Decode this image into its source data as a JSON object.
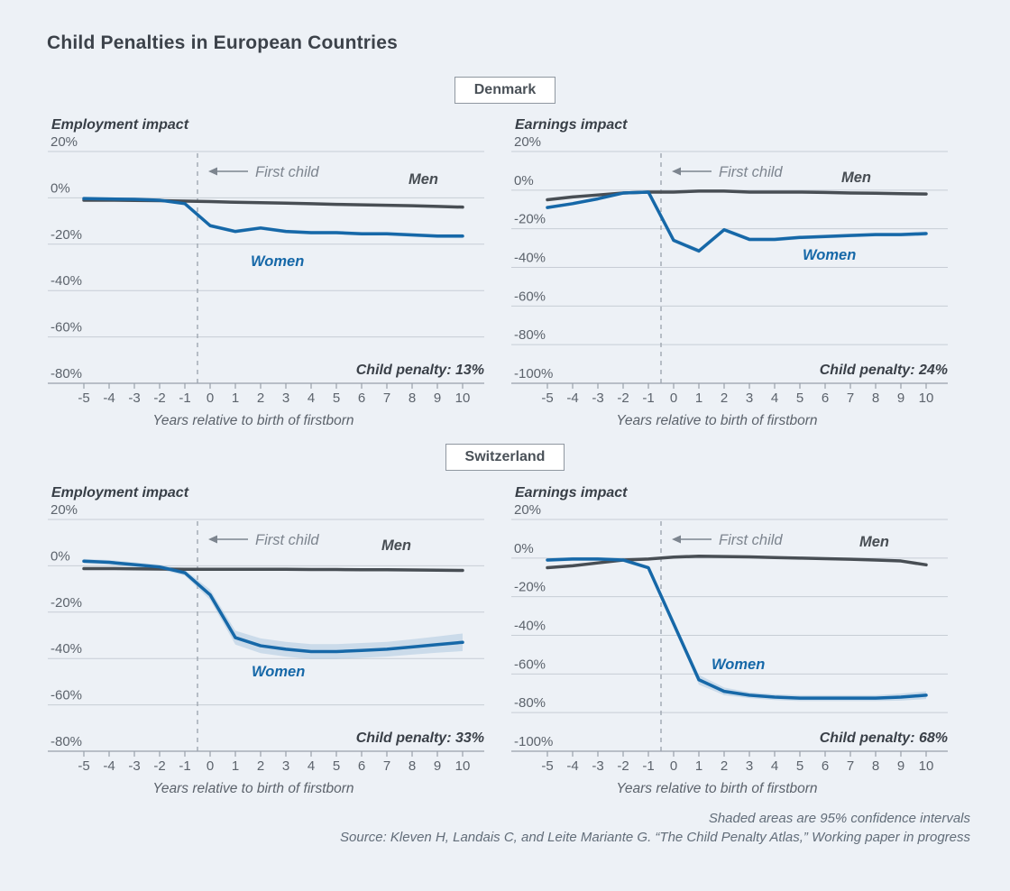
{
  "title": "Child Penalties in European Countries",
  "footer": {
    "note": "Shaded areas are 95% confidence intervals",
    "source": "Source: Kleven H, Landais C, and Leite Mariante G. “The Child Penalty Atlas,” Working paper in progress"
  },
  "colors": {
    "background": "#edf1f6",
    "title": "#3c424a",
    "heading": "#383f47",
    "men": "#484e54",
    "women": "#1668a8",
    "ci": "#a9c6de",
    "grid": "#c7cdd5",
    "axis": "#99a1ab",
    "tick_label": "#5c636c",
    "annotation": "#7d858f",
    "child_penalty": "#3a4048",
    "box_border": "#8f97a0",
    "footer": "#626d79"
  },
  "chart_data": [
    {
      "type": "line",
      "country": "Denmark",
      "title": "Employment impact",
      "xlabel": "Years relative to birth of firstborn",
      "x": [
        -5,
        -4,
        -3,
        -2,
        -1,
        0,
        1,
        2,
        3,
        4,
        5,
        6,
        7,
        8,
        9,
        10
      ],
      "yticks": [
        20,
        0,
        -20,
        -40,
        -60,
        -80
      ],
      "ylim": [
        -80,
        20
      ],
      "grid": true,
      "event_line_x": -0.5,
      "annotation": "First child",
      "child_penalty_pct": 13,
      "child_penalty_label": "Child penalty: 13%",
      "series": [
        {
          "name": "Men",
          "color_key": "men",
          "values": [
            -1.0,
            -1.0,
            -1.1,
            -1.2,
            -1.4,
            -1.6,
            -1.9,
            -2.1,
            -2.3,
            -2.5,
            -2.8,
            -3.0,
            -3.2,
            -3.4,
            -3.7,
            -4.0
          ]
        },
        {
          "name": "Women",
          "color_key": "women",
          "values": [
            -0.3,
            -0.5,
            -0.6,
            -1.0,
            -2.5,
            -12.0,
            -14.5,
            -13.0,
            -14.5,
            -15.0,
            -15.0,
            -15.5,
            -15.5,
            -16.0,
            -16.5,
            -16.5
          ],
          "ci_half_width": [
            0.5,
            0.5,
            0.5,
            0.5,
            0.6,
            0.8,
            0.8,
            0.8,
            0.8,
            0.8,
            0.8,
            0.8,
            0.8,
            0.8,
            0.8,
            0.9
          ]
        }
      ]
    },
    {
      "type": "line",
      "country": "Denmark",
      "title": "Earnings impact",
      "xlabel": "Years relative to birth of firstborn",
      "x": [
        -5,
        -4,
        -3,
        -2,
        -1,
        0,
        1,
        2,
        3,
        4,
        5,
        6,
        7,
        8,
        9,
        10
      ],
      "yticks": [
        20,
        0,
        -20,
        -40,
        -60,
        -80,
        -100
      ],
      "ylim": [
        -100,
        20
      ],
      "grid": true,
      "event_line_x": -0.5,
      "annotation": "First child",
      "child_penalty_pct": 24,
      "child_penalty_label": "Child penalty: 24%",
      "series": [
        {
          "name": "Men",
          "color_key": "men",
          "values": [
            -5.0,
            -3.5,
            -2.5,
            -1.5,
            -1.0,
            -1.0,
            -0.5,
            -0.5,
            -1.0,
            -1.0,
            -1.0,
            -1.2,
            -1.5,
            -1.6,
            -1.8,
            -2.0
          ]
        },
        {
          "name": "Women",
          "color_key": "women",
          "values": [
            -9.0,
            -7.0,
            -4.5,
            -1.5,
            -1.0,
            -26.0,
            -31.5,
            -20.5,
            -25.5,
            -25.5,
            -24.5,
            -24.0,
            -23.5,
            -23.0,
            -23.0,
            -22.5
          ],
          "ci_half_width": [
            0.8,
            0.8,
            0.6,
            0.5,
            0.5,
            1.0,
            1.2,
            1.0,
            1.0,
            1.0,
            1.0,
            1.0,
            1.0,
            1.0,
            1.0,
            1.2
          ]
        }
      ]
    },
    {
      "type": "line",
      "country": "Switzerland",
      "title": "Employment impact",
      "xlabel": "Years relative to birth of firstborn",
      "x": [
        -5,
        -4,
        -3,
        -2,
        -1,
        0,
        1,
        2,
        3,
        4,
        5,
        6,
        7,
        8,
        9,
        10
      ],
      "yticks": [
        20,
        0,
        -20,
        -40,
        -60,
        -80
      ],
      "ylim": [
        -80,
        20
      ],
      "grid": true,
      "event_line_x": -0.5,
      "annotation": "First child",
      "child_penalty_pct": 33,
      "child_penalty_label": "Child penalty: 33%",
      "series": [
        {
          "name": "Men",
          "color_key": "men",
          "values": [
            -1.2,
            -1.2,
            -1.3,
            -1.4,
            -1.5,
            -1.5,
            -1.5,
            -1.5,
            -1.5,
            -1.6,
            -1.6,
            -1.7,
            -1.7,
            -1.8,
            -1.9,
            -2.0
          ]
        },
        {
          "name": "Women",
          "color_key": "women",
          "values": [
            2.0,
            1.5,
            0.5,
            -0.5,
            -3.0,
            -12.5,
            -31.0,
            -34.5,
            -36.0,
            -37.0,
            -37.0,
            -36.5,
            -36.0,
            -35.0,
            -34.0,
            -33.0
          ],
          "ci_half_width": [
            1.0,
            1.0,
            1.0,
            1.0,
            1.2,
            2.2,
            3.0,
            3.2,
            3.2,
            3.2,
            3.2,
            3.2,
            3.2,
            3.3,
            3.5,
            3.8
          ]
        }
      ]
    },
    {
      "type": "line",
      "country": "Switzerland",
      "title": "Earnings impact",
      "xlabel": "Years relative to birth of firstborn",
      "x": [
        -5,
        -4,
        -3,
        -2,
        -1,
        0,
        1,
        2,
        3,
        4,
        5,
        6,
        7,
        8,
        9,
        10
      ],
      "yticks": [
        20,
        0,
        -20,
        -40,
        -60,
        -80,
        -100
      ],
      "ylim": [
        -100,
        20
      ],
      "grid": true,
      "event_line_x": -0.5,
      "annotation": "First child",
      "child_penalty_pct": 68,
      "child_penalty_label": "Child penalty: 68%",
      "series": [
        {
          "name": "Men",
          "color_key": "men",
          "values": [
            -5.0,
            -4.0,
            -2.5,
            -1.0,
            -0.5,
            0.5,
            1.0,
            0.8,
            0.6,
            0.3,
            0.0,
            -0.3,
            -0.6,
            -1.0,
            -1.5,
            -3.5
          ]
        },
        {
          "name": "Women",
          "color_key": "women",
          "values": [
            -1.0,
            -0.5,
            -0.5,
            -1.0,
            -5.0,
            -34.0,
            -63.0,
            -69.0,
            -71.0,
            -72.0,
            -72.5,
            -72.5,
            -72.5,
            -72.5,
            -72.0,
            -71.0
          ],
          "ci_half_width": [
            1.0,
            1.0,
            1.0,
            1.0,
            1.0,
            1.5,
            2.5,
            2.0,
            1.5,
            1.5,
            1.5,
            1.5,
            1.5,
            1.5,
            1.8,
            2.0
          ]
        }
      ]
    }
  ]
}
